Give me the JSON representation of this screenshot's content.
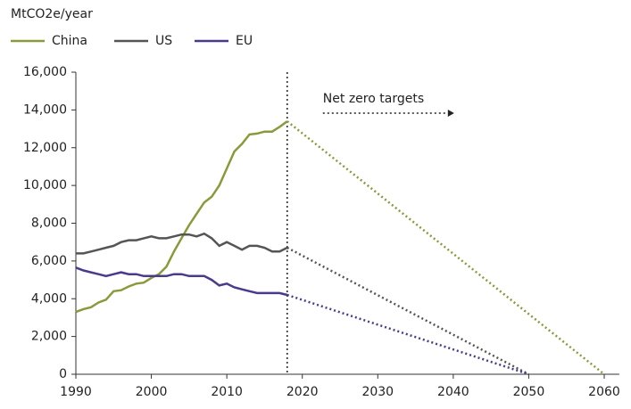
{
  "chart_data": {
    "type": "line",
    "y_label": "MtCO2e/year",
    "x": [
      1990,
      1991,
      1992,
      1993,
      1994,
      1995,
      1996,
      1997,
      1998,
      1999,
      2000,
      2001,
      2002,
      2003,
      2004,
      2005,
      2006,
      2007,
      2008,
      2009,
      2010,
      2011,
      2012,
      2013,
      2014,
      2015,
      2016,
      2017,
      2018
    ],
    "series": [
      {
        "name": "China",
        "color": "#8a9a3a",
        "values": [
          3300,
          3450,
          3550,
          3800,
          3950,
          4400,
          4450,
          4650,
          4800,
          4850,
          5100,
          5300,
          5700,
          6500,
          7200,
          7900,
          8500,
          9100,
          9400,
          10000,
          10900,
          11800,
          12200,
          12700,
          12750,
          12850,
          12850,
          13100,
          13400
        ]
      },
      {
        "name": "US",
        "color": "#555555",
        "values": [
          6400,
          6400,
          6500,
          6600,
          6700,
          6800,
          7000,
          7100,
          7100,
          7200,
          7300,
          7200,
          7200,
          7300,
          7400,
          7400,
          7300,
          7450,
          7200,
          6800,
          7000,
          6800,
          6600,
          6800,
          6800,
          6700,
          6500,
          6500,
          6700
        ]
      },
      {
        "name": "EU",
        "color": "#4b3a8c",
        "values": [
          5650,
          5500,
          5400,
          5300,
          5200,
          5300,
          5400,
          5300,
          5300,
          5200,
          5200,
          5200,
          5200,
          5300,
          5300,
          5200,
          5200,
          5200,
          5000,
          4700,
          4800,
          4600,
          4500,
          4400,
          4300,
          4300,
          4300,
          4300,
          4200
        ]
      }
    ],
    "projections": [
      {
        "x": [
          2018,
          2060
        ],
        "values": [
          13400,
          0
        ]
      },
      {
        "x": [
          2018,
          2050
        ],
        "values": [
          6700,
          0
        ]
      },
      {
        "x": [
          2018,
          2050
        ],
        "values": [
          4200,
          0
        ]
      }
    ],
    "annotation": {
      "text": "Net zero targets",
      "x": 2018
    },
    "xlim": [
      1990,
      2062
    ],
    "xticks": [
      1990,
      2000,
      2010,
      2020,
      2030,
      2040,
      2050,
      2060
    ],
    "ylim": [
      0,
      16000
    ],
    "yticks": [
      0,
      {
        "value": 2000,
        "label": "2,000"
      },
      {
        "value": 4000,
        "label": "4,000"
      },
      {
        "value": 6000,
        "label": "6,000"
      },
      {
        "value": 8000,
        "label": "8,000"
      },
      {
        "value": 10000,
        "label": "10,000"
      },
      {
        "value": 12000,
        "label": "12,000"
      },
      {
        "value": 14000,
        "label": "14,000"
      },
      {
        "value": 16000,
        "label": "16,000"
      }
    ],
    "grid": false
  }
}
